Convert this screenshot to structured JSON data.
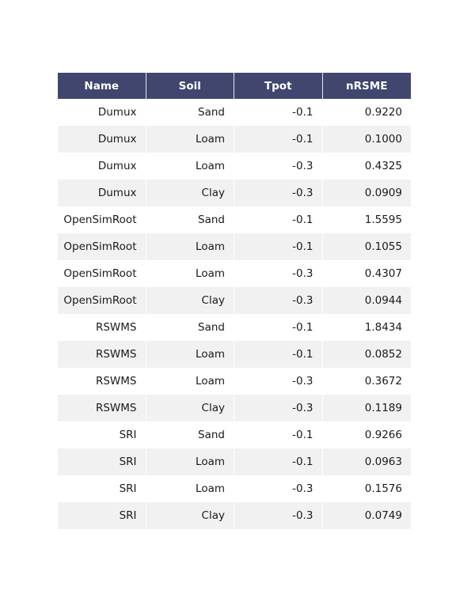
{
  "chart_data": {
    "type": "table",
    "columns": [
      "Name",
      "Soil",
      "Tpot",
      "nRSME"
    ],
    "rows": [
      [
        "Dumux",
        "Sand",
        "-0.1",
        "0.9220"
      ],
      [
        "Dumux",
        "Loam",
        "-0.1",
        "0.1000"
      ],
      [
        "Dumux",
        "Loam",
        "-0.3",
        "0.4325"
      ],
      [
        "Dumux",
        "Clay",
        "-0.3",
        "0.0909"
      ],
      [
        "OpenSimRoot",
        "Sand",
        "-0.1",
        "1.5595"
      ],
      [
        "OpenSimRoot",
        "Loam",
        "-0.1",
        "0.1055"
      ],
      [
        "OpenSimRoot",
        "Loam",
        "-0.3",
        "0.4307"
      ],
      [
        "OpenSimRoot",
        "Clay",
        "-0.3",
        "0.0944"
      ],
      [
        "RSWMS",
        "Sand",
        "-0.1",
        "1.8434"
      ],
      [
        "RSWMS",
        "Loam",
        "-0.1",
        "0.0852"
      ],
      [
        "RSWMS",
        "Loam",
        "-0.3",
        "0.3672"
      ],
      [
        "RSWMS",
        "Clay",
        "-0.3",
        "0.1189"
      ],
      [
        "SRI",
        "Sand",
        "-0.1",
        "0.9266"
      ],
      [
        "SRI",
        "Loam",
        "-0.1",
        "0.0963"
      ],
      [
        "SRI",
        "Loam",
        "-0.3",
        "0.1576"
      ],
      [
        "SRI",
        "Clay",
        "-0.3",
        "0.0749"
      ]
    ],
    "colors": {
      "header_bg": "#40466e",
      "header_text": "#ffffff",
      "row_odd": "#ffffff",
      "row_even": "#f1f1f1"
    }
  }
}
